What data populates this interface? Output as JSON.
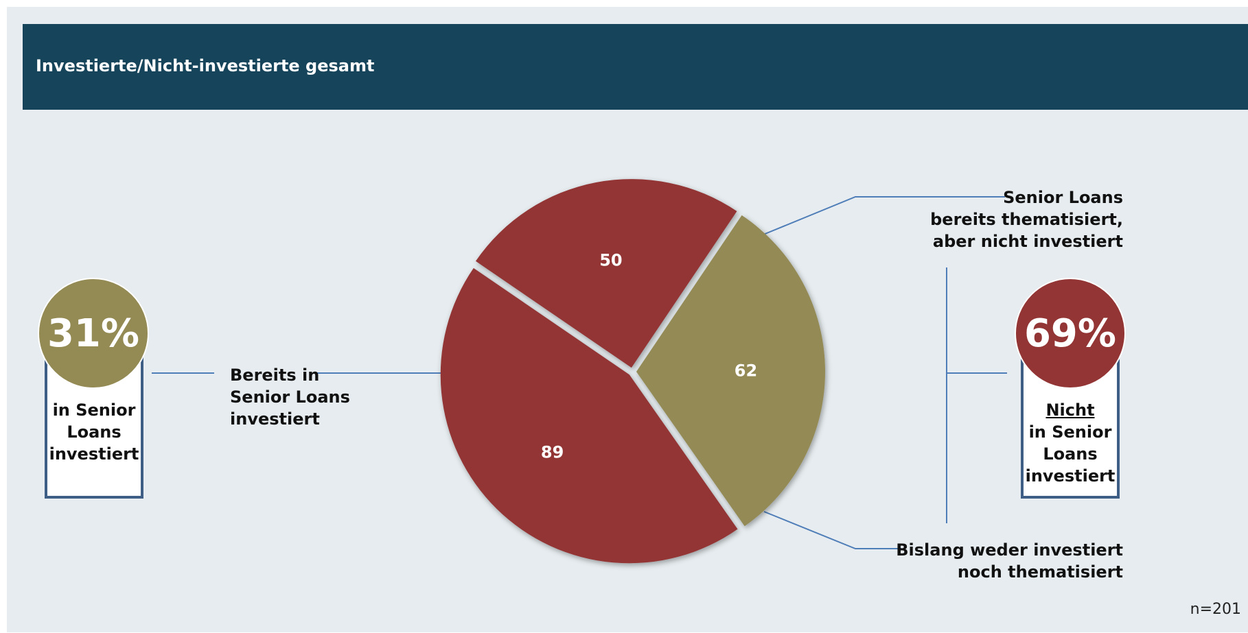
{
  "header": {
    "title": "Investierte/Nicht-investierte gesamt"
  },
  "chart_data": {
    "type": "pie",
    "title": "Investierte/Nicht-investierte gesamt",
    "slices": [
      {
        "label": "Senior Loans bereits thematisiert, aber nicht investiert",
        "value": 89,
        "color": "#933535"
      },
      {
        "label": "Bislang weder investiert noch thematisiert",
        "value": 50,
        "color": "#933535"
      },
      {
        "label": "Bereits in Senior Loans investiert",
        "value": 62,
        "color": "#948a54"
      }
    ],
    "annotations": {
      "invested_pct": "31%",
      "not_invested_pct": "69%",
      "sample_size": "n=201"
    }
  },
  "labels": {
    "thematisiert": [
      "Senior Loans",
      "bereits thematisiert,",
      "aber nicht investiert"
    ],
    "weder": [
      "Bislang weder investiert",
      "noch thematisiert"
    ],
    "bereits": [
      "Bereits in",
      "Senior Loans",
      "investiert"
    ]
  },
  "left_box": {
    "percent": "31%",
    "lines": [
      "in Senior",
      "Loans",
      "investiert"
    ],
    "color": "#948a54"
  },
  "right_box": {
    "percent": "69%",
    "underlined": "Nicht",
    "lines": [
      "in Senior",
      "Loans",
      "investiert"
    ],
    "color": "#933535"
  },
  "footer": {
    "sample_size": "n=201"
  }
}
